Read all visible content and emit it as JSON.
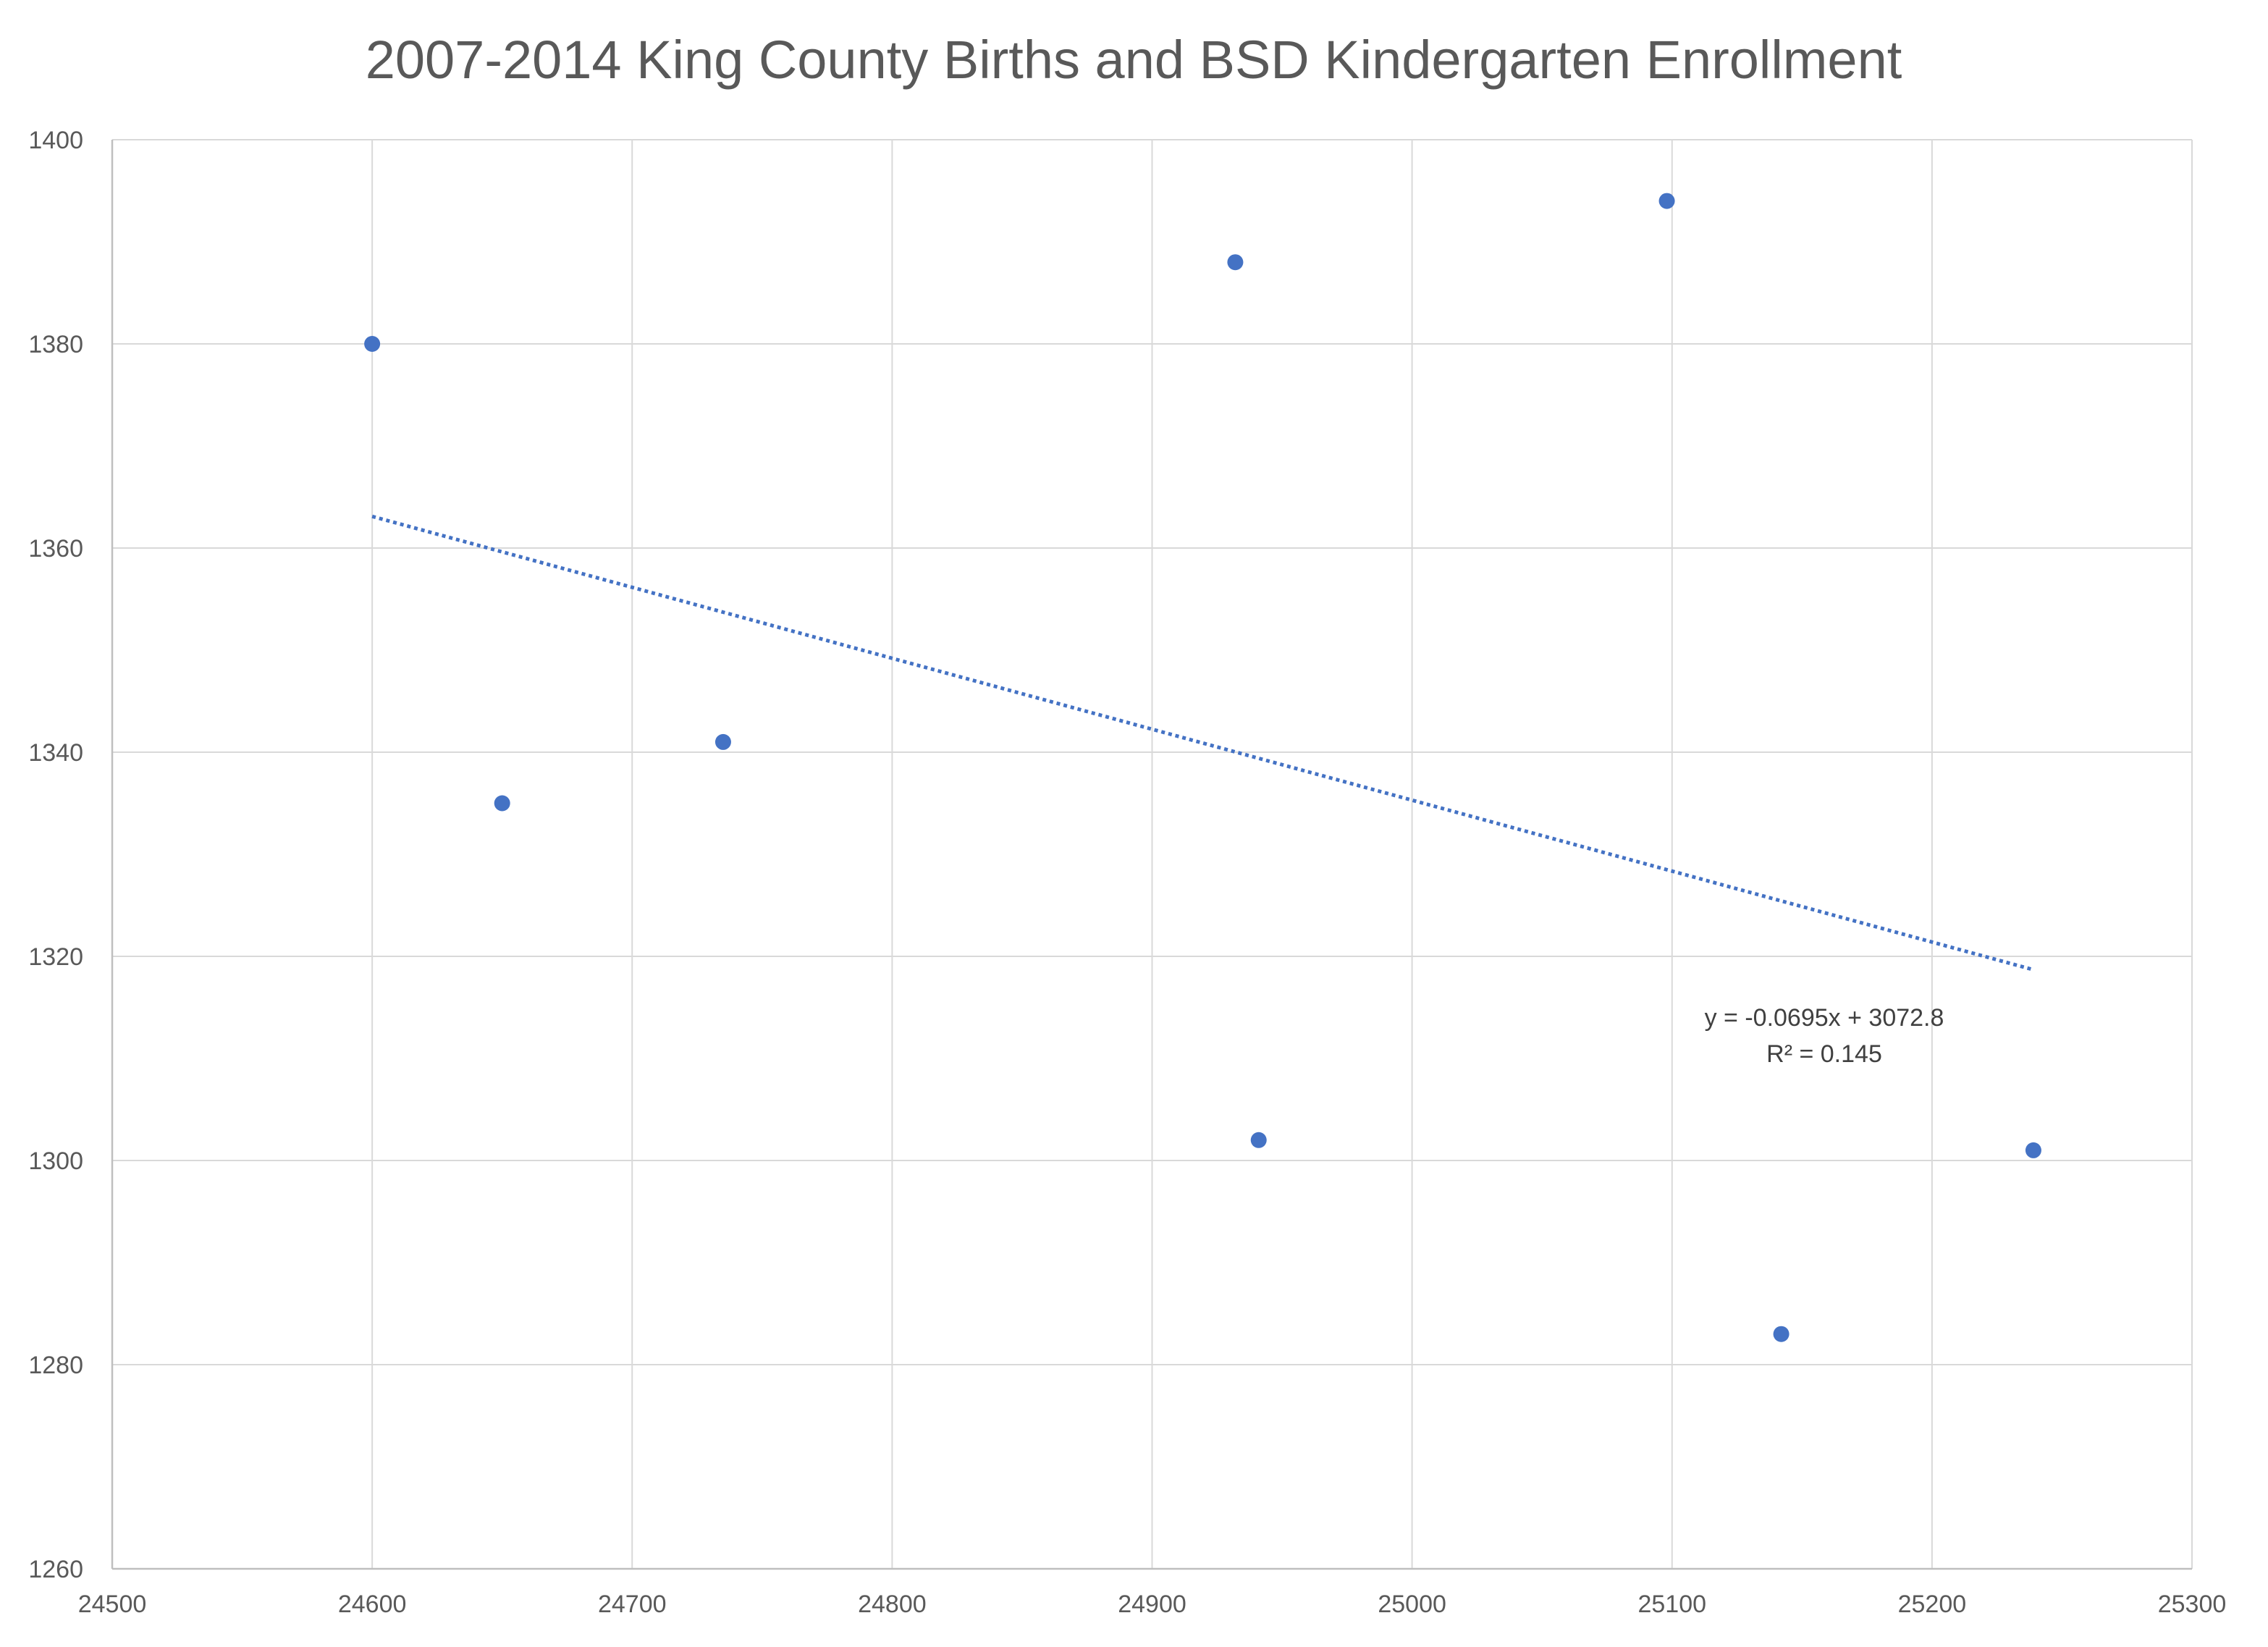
{
  "chart_data": {
    "type": "scatter",
    "title": "2007-2014 King County Births and BSD Kindergarten Enrollment",
    "xlabel": "",
    "ylabel": "",
    "xlim": [
      24500,
      25300
    ],
    "ylim": [
      1260,
      1400
    ],
    "x_ticks": [
      24500,
      24600,
      24700,
      24800,
      24900,
      25000,
      25100,
      25200,
      25300
    ],
    "y_ticks": [
      1260,
      1280,
      1300,
      1320,
      1340,
      1360,
      1380,
      1400
    ],
    "grid": true,
    "legend": "none",
    "colors": {
      "marker": "#4472C4",
      "trendline": "#4472C4",
      "grid": "#D9D9D9",
      "text": "#595959"
    },
    "series": [
      {
        "points": [
          {
            "x": 24600,
            "y": 1380
          },
          {
            "x": 24650,
            "y": 1335
          },
          {
            "x": 24735,
            "y": 1341
          },
          {
            "x": 24932,
            "y": 1388
          },
          {
            "x": 24941,
            "y": 1302
          },
          {
            "x": 25098,
            "y": 1394
          },
          {
            "x": 25142,
            "y": 1283
          },
          {
            "x": 25239,
            "y": 1301
          }
        ]
      }
    ],
    "trendline": {
      "type": "linear",
      "slope": -0.0695,
      "intercept": 3072.8,
      "x_range": [
        24600,
        25239
      ],
      "style": "dotted",
      "equation_label": "y = -0.0695x + 3072.8",
      "r2_label": "R² = 0.145"
    }
  }
}
